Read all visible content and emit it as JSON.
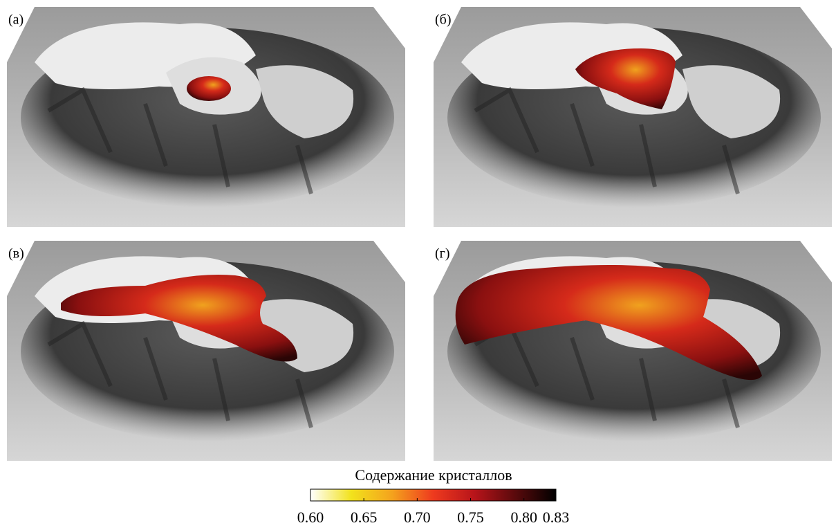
{
  "panels": [
    {
      "label": "(а)"
    },
    {
      "label": "(б)"
    },
    {
      "label": "(в)"
    },
    {
      "label": "(г)"
    }
  ],
  "colorbar": {
    "title": "Содержание кристаллов",
    "lim": [
      0.6,
      0.83
    ],
    "ticks": [
      {
        "value": 0.6,
        "label": "0.60"
      },
      0.65,
      {
        "value": 0.7,
        "label": "0.70"
      },
      0.75,
      {
        "value": 0.8,
        "label": "0.80"
      },
      0.83
    ],
    "colors": [
      "#ffffff",
      "#f2e21c",
      "#f4a21d",
      "#ee3a1e",
      "#b8141a",
      "#5a0a0c",
      "#000000"
    ]
  }
}
